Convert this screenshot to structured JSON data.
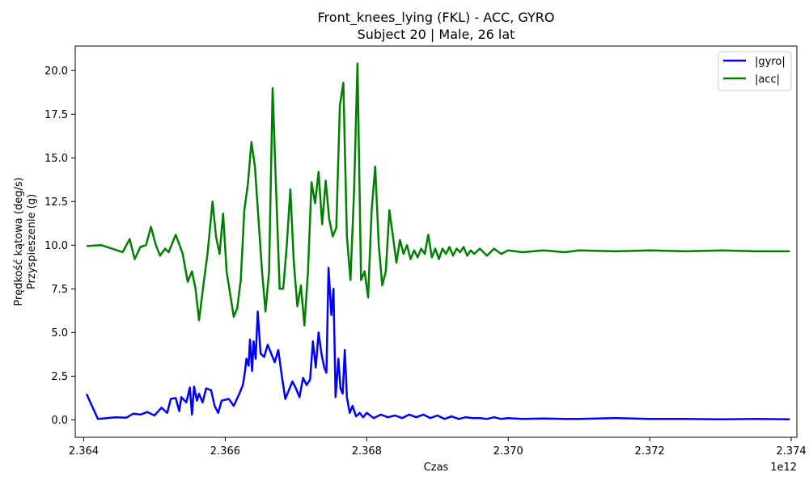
{
  "chart_data": {
    "type": "line",
    "title_line1": "Front_knees_lying (FKL) - ACC, GYRO",
    "title_line2": "Subject 20 | Male, 26 lat",
    "xlabel": "Czas",
    "ylabel_line1": "Prędkość kątowa (deg/s)",
    "ylabel_line2": "Przyspieszenie (g)",
    "x_offset_label": "1e12",
    "xlim": [
      2.36388,
      2.37408
    ],
    "ylim": [
      -1.0,
      21.4
    ],
    "x_ticks": [
      2.364,
      2.366,
      2.368,
      2.37,
      2.372,
      2.374
    ],
    "x_tick_labels": [
      "2.364",
      "2.366",
      "2.368",
      "2.370",
      "2.372",
      "2.374"
    ],
    "y_ticks": [
      0.0,
      2.5,
      5.0,
      7.5,
      10.0,
      12.5,
      15.0,
      17.5,
      20.0
    ],
    "y_tick_labels": [
      "0.0",
      "2.5",
      "5.0",
      "7.5",
      "10.0",
      "12.5",
      "15.0",
      "17.5",
      "20.0"
    ],
    "legend_position": "top-right",
    "series": [
      {
        "name": "|gyro|",
        "color": "#0000ff",
        "points": [
          [
            2.36404,
            1.48
          ],
          [
            2.3642,
            0.05
          ],
          [
            2.36445,
            0.15
          ],
          [
            2.3646,
            0.12
          ],
          [
            2.3647,
            0.35
          ],
          [
            2.3648,
            0.3
          ],
          [
            2.3649,
            0.45
          ],
          [
            2.365,
            0.25
          ],
          [
            2.3651,
            0.7
          ],
          [
            2.36518,
            0.4
          ],
          [
            2.36523,
            1.2
          ],
          [
            2.3653,
            1.25
          ],
          [
            2.36535,
            0.5
          ],
          [
            2.36538,
            1.3
          ],
          [
            2.36545,
            1.0
          ],
          [
            2.3655,
            1.85
          ],
          [
            2.36553,
            0.3
          ],
          [
            2.36556,
            1.9
          ],
          [
            2.3656,
            1.1
          ],
          [
            2.36563,
            1.5
          ],
          [
            2.36568,
            1.0
          ],
          [
            2.36573,
            1.8
          ],
          [
            2.3658,
            1.7
          ],
          [
            2.36585,
            0.8
          ],
          [
            2.3659,
            0.4
          ],
          [
            2.36595,
            1.1
          ],
          [
            2.36605,
            1.2
          ],
          [
            2.36612,
            0.8
          ],
          [
            2.3662,
            1.5
          ],
          [
            2.36625,
            2.0
          ],
          [
            2.36628,
            2.8
          ],
          [
            2.3663,
            3.5
          ],
          [
            2.36633,
            3.1
          ],
          [
            2.36635,
            4.6
          ],
          [
            2.36638,
            2.8
          ],
          [
            2.3664,
            4.5
          ],
          [
            2.36643,
            3.5
          ],
          [
            2.36646,
            6.2
          ],
          [
            2.3665,
            3.8
          ],
          [
            2.36655,
            3.6
          ],
          [
            2.3666,
            4.3
          ],
          [
            2.36665,
            3.8
          ],
          [
            2.3667,
            3.3
          ],
          [
            2.36675,
            4.0
          ],
          [
            2.3668,
            2.5
          ],
          [
            2.36685,
            1.2
          ],
          [
            2.3669,
            1.7
          ],
          [
            2.36695,
            2.2
          ],
          [
            2.367,
            1.8
          ],
          [
            2.36705,
            1.3
          ],
          [
            2.3671,
            2.4
          ],
          [
            2.36715,
            2.0
          ],
          [
            2.3672,
            2.3
          ],
          [
            2.36724,
            4.5
          ],
          [
            2.36728,
            3.0
          ],
          [
            2.36732,
            5.0
          ],
          [
            2.36736,
            3.8
          ],
          [
            2.3674,
            3.0
          ],
          [
            2.36743,
            2.7
          ],
          [
            2.36746,
            8.7
          ],
          [
            2.3675,
            6.0
          ],
          [
            2.36753,
            7.5
          ],
          [
            2.36756,
            1.3
          ],
          [
            2.3676,
            3.5
          ],
          [
            2.36763,
            1.8
          ],
          [
            2.36766,
            1.5
          ],
          [
            2.36769,
            4.0
          ],
          [
            2.36772,
            1.3
          ],
          [
            2.36776,
            0.4
          ],
          [
            2.3678,
            0.8
          ],
          [
            2.36785,
            0.2
          ],
          [
            2.3679,
            0.4
          ],
          [
            2.36795,
            0.15
          ],
          [
            2.368,
            0.4
          ],
          [
            2.3681,
            0.1
          ],
          [
            2.3682,
            0.3
          ],
          [
            2.3683,
            0.15
          ],
          [
            2.3684,
            0.25
          ],
          [
            2.3685,
            0.1
          ],
          [
            2.3686,
            0.3
          ],
          [
            2.3687,
            0.15
          ],
          [
            2.3688,
            0.3
          ],
          [
            2.3689,
            0.1
          ],
          [
            2.369,
            0.25
          ],
          [
            2.3691,
            0.05
          ],
          [
            2.3692,
            0.2
          ],
          [
            2.3693,
            0.05
          ],
          [
            2.3694,
            0.15
          ],
          [
            2.3695,
            0.1
          ],
          [
            2.3696,
            0.1
          ],
          [
            2.3697,
            0.05
          ],
          [
            2.3698,
            0.15
          ],
          [
            2.3699,
            0.05
          ],
          [
            2.37,
            0.1
          ],
          [
            2.3702,
            0.05
          ],
          [
            2.3705,
            0.08
          ],
          [
            2.3708,
            0.05
          ],
          [
            2.371,
            0.05
          ],
          [
            2.3715,
            0.1
          ],
          [
            2.372,
            0.05
          ],
          [
            2.3725,
            0.05
          ],
          [
            2.373,
            0.03
          ],
          [
            2.3735,
            0.05
          ],
          [
            2.37398,
            0.03
          ]
        ]
      },
      {
        "name": "|acc|",
        "color": "#008000",
        "points": [
          [
            2.36404,
            9.95
          ],
          [
            2.36425,
            10.0
          ],
          [
            2.36455,
            9.6
          ],
          [
            2.36465,
            10.35
          ],
          [
            2.36472,
            9.2
          ],
          [
            2.3648,
            9.9
          ],
          [
            2.36488,
            10.0
          ],
          [
            2.36495,
            11.05
          ],
          [
            2.36502,
            10.0
          ],
          [
            2.36508,
            9.4
          ],
          [
            2.36515,
            9.8
          ],
          [
            2.3652,
            9.6
          ],
          [
            2.3653,
            10.6
          ],
          [
            2.3654,
            9.5
          ],
          [
            2.36547,
            7.9
          ],
          [
            2.36553,
            8.5
          ],
          [
            2.36558,
            7.5
          ],
          [
            2.36563,
            5.7
          ],
          [
            2.3657,
            8.0
          ],
          [
            2.36575,
            9.5
          ],
          [
            2.36582,
            12.5
          ],
          [
            2.36587,
            10.5
          ],
          [
            2.36592,
            9.5
          ],
          [
            2.36597,
            11.8
          ],
          [
            2.36602,
            8.5
          ],
          [
            2.36607,
            7.2
          ],
          [
            2.36612,
            5.9
          ],
          [
            2.36617,
            6.4
          ],
          [
            2.36622,
            8.0
          ],
          [
            2.36627,
            12.0
          ],
          [
            2.36632,
            13.5
          ],
          [
            2.36637,
            15.9
          ],
          [
            2.36642,
            14.5
          ],
          [
            2.36647,
            11.5
          ],
          [
            2.36652,
            8.5
          ],
          [
            2.36657,
            6.2
          ],
          [
            2.36662,
            8.5
          ],
          [
            2.36667,
            19.0
          ],
          [
            2.36672,
            13.0
          ],
          [
            2.36677,
            7.5
          ],
          [
            2.36682,
            7.5
          ],
          [
            2.36687,
            10.0
          ],
          [
            2.36692,
            13.2
          ],
          [
            2.36697,
            9.0
          ],
          [
            2.36702,
            6.5
          ],
          [
            2.36707,
            7.7
          ],
          [
            2.36712,
            5.4
          ],
          [
            2.36717,
            8.5
          ],
          [
            2.36722,
            13.6
          ],
          [
            2.36727,
            12.4
          ],
          [
            2.36732,
            14.2
          ],
          [
            2.36737,
            11.2
          ],
          [
            2.36742,
            13.7
          ],
          [
            2.36747,
            11.5
          ],
          [
            2.36752,
            10.5
          ],
          [
            2.36757,
            11.0
          ],
          [
            2.36762,
            18.0
          ],
          [
            2.36767,
            19.3
          ],
          [
            2.36772,
            10.5
          ],
          [
            2.36777,
            8.0
          ],
          [
            2.36782,
            13.0
          ],
          [
            2.36787,
            20.4
          ],
          [
            2.36792,
            8.0
          ],
          [
            2.36797,
            8.5
          ],
          [
            2.36802,
            7.0
          ],
          [
            2.36807,
            12.0
          ],
          [
            2.36812,
            14.5
          ],
          [
            2.36817,
            10.0
          ],
          [
            2.36822,
            7.7
          ],
          [
            2.36827,
            8.5
          ],
          [
            2.36832,
            12.0
          ],
          [
            2.36837,
            10.5
          ],
          [
            2.36842,
            9.0
          ],
          [
            2.36847,
            10.3
          ],
          [
            2.36852,
            9.5
          ],
          [
            2.36857,
            10.0
          ],
          [
            2.36862,
            9.2
          ],
          [
            2.36867,
            9.7
          ],
          [
            2.36872,
            9.3
          ],
          [
            2.36877,
            9.8
          ],
          [
            2.36882,
            9.5
          ],
          [
            2.36887,
            10.6
          ],
          [
            2.36892,
            9.3
          ],
          [
            2.36897,
            9.8
          ],
          [
            2.36902,
            9.2
          ],
          [
            2.36907,
            9.8
          ],
          [
            2.36912,
            9.5
          ],
          [
            2.36917,
            9.9
          ],
          [
            2.36922,
            9.4
          ],
          [
            2.36927,
            9.8
          ],
          [
            2.36932,
            9.6
          ],
          [
            2.36937,
            9.9
          ],
          [
            2.36942,
            9.4
          ],
          [
            2.36947,
            9.7
          ],
          [
            2.36952,
            9.5
          ],
          [
            2.3696,
            9.8
          ],
          [
            2.3697,
            9.4
          ],
          [
            2.3698,
            9.8
          ],
          [
            2.3699,
            9.5
          ],
          [
            2.37,
            9.7
          ],
          [
            2.3702,
            9.6
          ],
          [
            2.3705,
            9.7
          ],
          [
            2.3708,
            9.6
          ],
          [
            2.371,
            9.7
          ],
          [
            2.3715,
            9.65
          ],
          [
            2.372,
            9.7
          ],
          [
            2.3725,
            9.65
          ],
          [
            2.373,
            9.7
          ],
          [
            2.3735,
            9.65
          ],
          [
            2.37398,
            9.65
          ]
        ]
      }
    ]
  }
}
